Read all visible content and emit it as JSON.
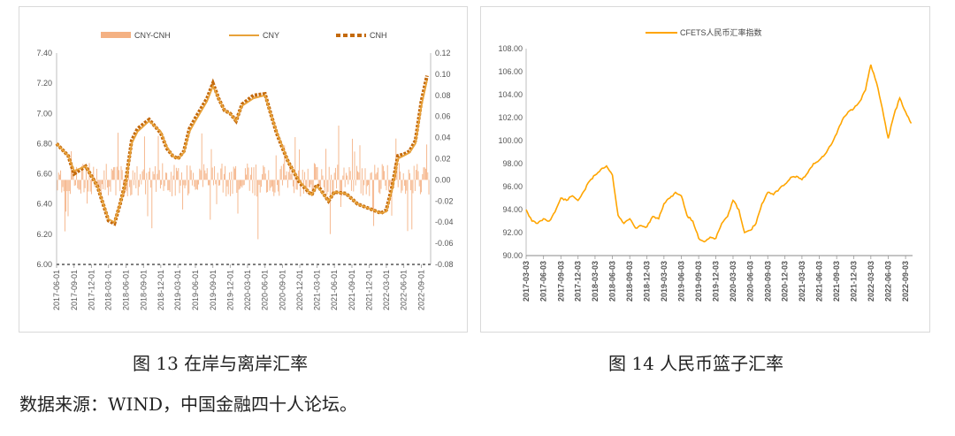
{
  "figures": [
    {
      "caption": "图 13 在岸与离岸汇率",
      "chart_data": {
        "type": "line",
        "title": "",
        "xlabel": "",
        "ylabel": "",
        "ylim": [
          6.0,
          7.4
        ],
        "y2lim": [
          -0.08,
          0.12
        ],
        "yticks": [
          "7.40",
          "7.20",
          "7.00",
          "6.80",
          "6.60",
          "6.40",
          "6.20",
          "6.00"
        ],
        "y2ticks": [
          "0.12",
          "0.10",
          "0.08",
          "0.06",
          "0.04",
          "0.02",
          "0.00",
          "-0.02",
          "-0.04",
          "-0.06",
          "-0.08"
        ],
        "xticks": [
          "2017-06-01",
          "2017-09-01",
          "2017-12-01",
          "2018-03-01",
          "2018-06-01",
          "2018-09-01",
          "2018-12-01",
          "2019-03-01",
          "2019-06-01",
          "2019-09-01",
          "2019-12-01",
          "2020-03-01",
          "2020-06-01",
          "2020-09-01",
          "2020-12-01",
          "2021-03-01",
          "2021-06-01",
          "2021-09-01",
          "2021-12-01",
          "2022-03-01",
          "2022-06-01",
          "2022-09-01"
        ],
        "legend": [
          "CNY-CNH",
          "CNY",
          "CNH"
        ],
        "legend_position": "top",
        "series": [
          {
            "name": "CNY",
            "axis": "left",
            "color": "#e8a23a",
            "style": "solid",
            "x": [
              "2017-06-01",
              "2017-08-01",
              "2017-09-01",
              "2017-11-01",
              "2018-01-01",
              "2018-03-01",
              "2018-04-01",
              "2018-05-01",
              "2018-06-01",
              "2018-07-01",
              "2018-08-01",
              "2018-10-01",
              "2018-12-01",
              "2019-01-01",
              "2019-02-01",
              "2019-03-01",
              "2019-04-01",
              "2019-05-01",
              "2019-06-01",
              "2019-08-01",
              "2019-09-01",
              "2019-10-01",
              "2019-11-01",
              "2019-12-01",
              "2020-01-01",
              "2020-02-01",
              "2020-04-01",
              "2020-06-01",
              "2020-07-01",
              "2020-08-01",
              "2020-09-01",
              "2020-10-01",
              "2020-12-01",
              "2021-02-01",
              "2021-03-01",
              "2021-05-01",
              "2021-06-01",
              "2021-08-01",
              "2021-10-01",
              "2021-12-01",
              "2022-02-01",
              "2022-03-01",
              "2022-04-01",
              "2022-05-01",
              "2022-06-01",
              "2022-07-01",
              "2022-08-01",
              "2022-09-01",
              "2022-10-01"
            ],
            "values": [
              6.8,
              6.72,
              6.62,
              6.65,
              6.52,
              6.3,
              6.28,
              6.4,
              6.55,
              6.8,
              6.88,
              6.95,
              6.88,
              6.78,
              6.72,
              6.7,
              6.74,
              6.88,
              6.95,
              7.08,
              7.18,
              7.1,
              7.02,
              7.0,
              6.95,
              7.05,
              7.1,
              7.12,
              7.0,
              6.88,
              6.78,
              6.68,
              6.55,
              6.46,
              6.52,
              6.42,
              6.48,
              6.47,
              6.4,
              6.37,
              6.34,
              6.35,
              6.5,
              6.7,
              6.72,
              6.74,
              6.8,
              7.05,
              7.22
            ]
          },
          {
            "name": "CNH",
            "axis": "left",
            "color": "#c46a0c",
            "style": "dashed",
            "x": [
              "2017-06-01",
              "2017-08-01",
              "2017-09-01",
              "2017-11-01",
              "2018-01-01",
              "2018-03-01",
              "2018-04-01",
              "2018-05-01",
              "2018-06-01",
              "2018-07-01",
              "2018-08-01",
              "2018-10-01",
              "2018-12-01",
              "2019-01-01",
              "2019-02-01",
              "2019-03-01",
              "2019-04-01",
              "2019-05-01",
              "2019-06-01",
              "2019-08-01",
              "2019-09-01",
              "2019-10-01",
              "2019-11-01",
              "2019-12-01",
              "2020-01-01",
              "2020-02-01",
              "2020-04-01",
              "2020-06-01",
              "2020-07-01",
              "2020-08-01",
              "2020-09-01",
              "2020-10-01",
              "2020-12-01",
              "2021-02-01",
              "2021-03-01",
              "2021-05-01",
              "2021-06-01",
              "2021-08-01",
              "2021-10-01",
              "2021-12-01",
              "2022-02-01",
              "2022-03-01",
              "2022-04-01",
              "2022-05-01",
              "2022-06-01",
              "2022-07-01",
              "2022-08-01",
              "2022-09-01",
              "2022-10-01"
            ],
            "values": [
              6.8,
              6.72,
              6.6,
              6.65,
              6.52,
              6.29,
              6.27,
              6.4,
              6.56,
              6.82,
              6.9,
              6.96,
              6.87,
              6.77,
              6.72,
              6.7,
              6.75,
              6.9,
              6.97,
              7.1,
              7.2,
              7.1,
              7.02,
              7.0,
              6.95,
              7.06,
              7.12,
              7.13,
              7.0,
              6.87,
              6.77,
              6.68,
              6.54,
              6.46,
              6.53,
              6.42,
              6.48,
              6.47,
              6.4,
              6.37,
              6.34,
              6.36,
              6.52,
              6.72,
              6.73,
              6.75,
              6.82,
              7.08,
              7.25
            ]
          },
          {
            "name": "CNY-CNH",
            "axis": "right",
            "color": "#f4b183",
            "style": "bar"
          }
        ]
      }
    },
    {
      "caption": "图 14 人民币篮子汇率",
      "chart_data": {
        "type": "line",
        "title": "",
        "xlabel": "",
        "ylabel": "",
        "ylim": [
          90.0,
          108.0
        ],
        "yticks": [
          "108.00",
          "106.00",
          "104.00",
          "102.00",
          "100.00",
          "98.00",
          "96.00",
          "94.00",
          "92.00",
          "90.00"
        ],
        "xticks": [
          "2017-03-03",
          "2017-06-03",
          "2017-09-03",
          "2017-12-03",
          "2018-03-03",
          "2018-06-03",
          "2018-09-03",
          "2018-12-03",
          "2019-03-03",
          "2019-06-03",
          "2019-09-03",
          "2019-12-03",
          "2020-03-03",
          "2020-06-03",
          "2020-09-03",
          "2020-12-03",
          "2021-03-03",
          "2021-06-03",
          "2021-09-03",
          "2021-12-03",
          "2022-03-03",
          "2022-06-03",
          "2022-09-03"
        ],
        "legend": [
          "CFETS人民币汇率指数"
        ],
        "legend_position": "top",
        "series": [
          {
            "name": "CFETS人民币汇率指数",
            "color": "#ffa500",
            "x": [
              "2017-03-03",
              "2017-04-03",
              "2017-05-03",
              "2017-06-03",
              "2017-07-03",
              "2017-08-03",
              "2017-09-03",
              "2017-10-03",
              "2017-11-03",
              "2017-12-03",
              "2018-01-03",
              "2018-02-03",
              "2018-03-03",
              "2018-04-03",
              "2018-05-03",
              "2018-06-03",
              "2018-07-03",
              "2018-08-03",
              "2018-09-03",
              "2018-10-03",
              "2018-11-03",
              "2018-12-03",
              "2019-01-03",
              "2019-02-03",
              "2019-03-03",
              "2019-04-03",
              "2019-05-03",
              "2019-06-03",
              "2019-07-03",
              "2019-08-03",
              "2019-09-03",
              "2019-10-03",
              "2019-11-03",
              "2019-12-03",
              "2020-01-03",
              "2020-02-03",
              "2020-03-03",
              "2020-04-03",
              "2020-05-03",
              "2020-06-03",
              "2020-07-03",
              "2020-08-03",
              "2020-09-03",
              "2020-10-03",
              "2020-11-03",
              "2020-12-03",
              "2021-01-03",
              "2021-02-03",
              "2021-03-03",
              "2021-04-03",
              "2021-05-03",
              "2021-06-03",
              "2021-07-03",
              "2021-08-03",
              "2021-09-03",
              "2021-10-03",
              "2021-11-03",
              "2021-12-03",
              "2022-01-03",
              "2022-02-03",
              "2022-03-03",
              "2022-04-03",
              "2022-05-03",
              "2022-06-03",
              "2022-07-03",
              "2022-08-03",
              "2022-09-03",
              "2022-10-03"
            ],
            "values": [
              94.0,
              93.0,
              92.8,
              93.2,
              93.0,
              93.8,
              95.0,
              94.8,
              95.2,
              94.8,
              95.6,
              96.5,
              97.0,
              97.5,
              97.8,
              97.0,
              93.5,
              92.8,
              93.2,
              92.4,
              92.6,
              92.5,
              93.4,
              93.2,
              94.5,
              95.0,
              95.5,
              95.2,
              93.5,
              93.0,
              91.5,
              91.2,
              91.6,
              91.5,
              92.8,
              93.4,
              94.8,
              94.0,
              92.0,
              92.2,
              92.8,
              94.5,
              95.5,
              95.3,
              95.8,
              96.2,
              96.8,
              96.9,
              96.6,
              97.2,
              98.0,
              98.3,
              98.8,
              99.6,
              100.6,
              101.8,
              102.5,
              102.8,
              103.4,
              104.4,
              106.6,
              105.0,
              102.8,
              100.2,
              102.2,
              103.7,
              102.5,
              101.5
            ]
          }
        ]
      }
    }
  ],
  "source_note": "数据来源：WIND，中国金融四十人论坛。"
}
